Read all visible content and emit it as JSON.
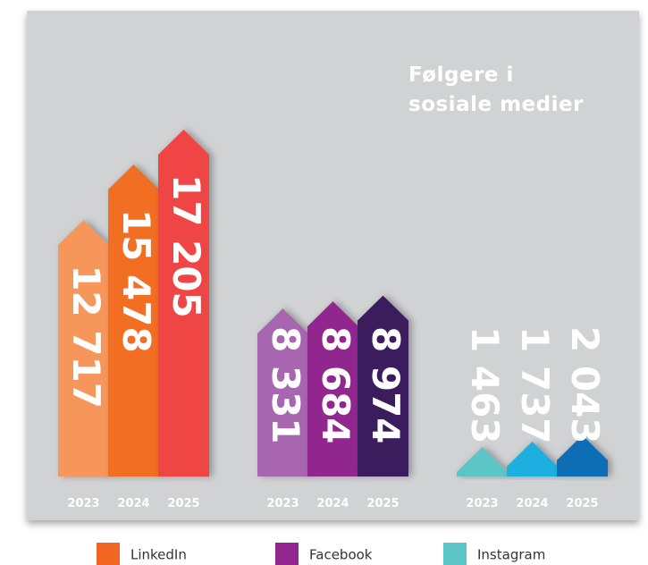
{
  "chart_data": {
    "type": "bar",
    "title": "Følgere i sosiale medier",
    "categories": [
      "2023",
      "2024",
      "2025"
    ],
    "series": [
      {
        "name": "LinkedIn",
        "color": "#f26522",
        "colors": [
          "#f7965a",
          "#f26e22",
          "#ef4544"
        ],
        "values": [
          12717,
          15478,
          17205
        ],
        "value_labels": [
          "12 717",
          "15 478",
          "17 205"
        ]
      },
      {
        "name": "Facebook",
        "color": "#92278f",
        "colors": [
          "#a865b0",
          "#92278f",
          "#3a1f5d"
        ],
        "values": [
          8331,
          8684,
          8974
        ],
        "value_labels": [
          "8 331",
          "8 684",
          "8 974"
        ]
      },
      {
        "name": "Instagram",
        "color": "#5bc5c8",
        "colors": [
          "#5bc5c8",
          "#1aafe0",
          "#0a6db5"
        ],
        "values": [
          1463,
          1737,
          2043
        ],
        "value_labels": [
          "1 463",
          "1 737",
          "2 043"
        ]
      }
    ],
    "legend": "bottom"
  }
}
